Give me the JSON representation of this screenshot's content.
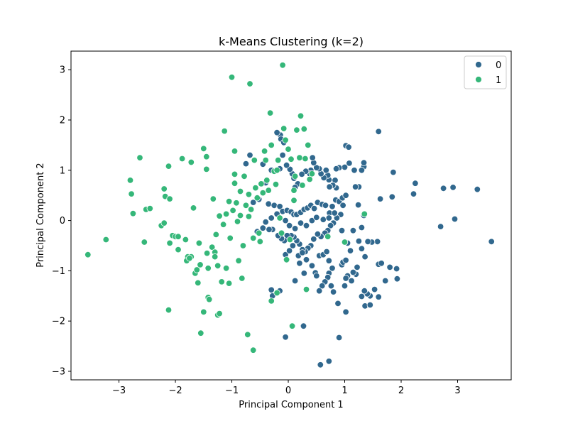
{
  "chart_data": {
    "type": "scatter",
    "title": "k-Means Clustering (k=2)",
    "xlabel": "Principal Component 1",
    "ylabel": "Principal Component 2",
    "xlim": [
      -3.85,
      3.95
    ],
    "ylim": [
      -3.17,
      3.37
    ],
    "xticks": [
      -3,
      -2,
      -1,
      0,
      1,
      2,
      3
    ],
    "yticks": [
      -3,
      -2,
      -1,
      0,
      1,
      2,
      3
    ],
    "grid": false,
    "legend_position": "top-right",
    "colors": {
      "0": "#31688e",
      "1": "#35b779"
    },
    "series": [
      {
        "name": "0",
        "points": [
          [
            3.6,
            -0.42
          ],
          [
            2.95,
            0.03
          ],
          [
            2.92,
            0.66
          ],
          [
            2.75,
            0.64
          ],
          [
            3.35,
            0.62
          ],
          [
            2.7,
            -0.12
          ],
          [
            2.25,
            0.74
          ],
          [
            2.22,
            0.53
          ],
          [
            1.86,
            0.96
          ],
          [
            1.84,
            0.47
          ],
          [
            1.6,
            1.77
          ],
          [
            1.63,
            0.43
          ],
          [
            1.58,
            -0.42
          ],
          [
            1.48,
            -0.43
          ],
          [
            1.41,
            -0.42
          ],
          [
            1.6,
            -0.87
          ],
          [
            1.65,
            -0.85
          ],
          [
            1.8,
            -0.93
          ],
          [
            1.92,
            -0.96
          ],
          [
            1.93,
            -1.16
          ],
          [
            1.72,
            -1.2
          ],
          [
            1.53,
            -1.37
          ],
          [
            1.6,
            -1.52
          ],
          [
            1.45,
            -1.5
          ],
          [
            1.4,
            -1.46
          ],
          [
            1.35,
            -1.4
          ],
          [
            1.3,
            -1.51
          ],
          [
            1.36,
            -1.7
          ],
          [
            1.36,
            -0.72
          ],
          [
            1.3,
            -0.56
          ],
          [
            1.25,
            -0.41
          ],
          [
            1.22,
            -0.93
          ],
          [
            1.2,
            -1.07
          ],
          [
            1.15,
            -1.03
          ],
          [
            1.12,
            -1.2
          ],
          [
            1.05,
            -1.1
          ],
          [
            1.02,
            -1.15
          ],
          [
            0.95,
            -0.88
          ],
          [
            0.97,
            -0.83
          ],
          [
            1.02,
            -0.79
          ],
          [
            1.15,
            -0.2
          ],
          [
            1.3,
            -0.14
          ],
          [
            1.34,
            0.1
          ],
          [
            1.24,
            0.31
          ],
          [
            1.25,
            0.67
          ],
          [
            1.19,
            0.67
          ],
          [
            1.34,
            1.07
          ],
          [
            1.34,
            1.15
          ],
          [
            1.3,
            1.0
          ],
          [
            1.17,
            1.0
          ],
          [
            1.08,
            1.14
          ],
          [
            1.02,
            1.49
          ],
          [
            1.07,
            1.46
          ],
          [
            1.0,
            1.06
          ],
          [
            0.9,
            1.05
          ],
          [
            0.85,
            1.03
          ],
          [
            0.83,
            0.8
          ],
          [
            0.85,
            0.65
          ],
          [
            0.79,
            0.7
          ],
          [
            0.73,
            0.67
          ],
          [
            0.72,
            0.81
          ],
          [
            0.7,
            0.9
          ],
          [
            0.67,
            1.0
          ],
          [
            0.63,
            0.85
          ],
          [
            0.58,
            0.93
          ],
          [
            0.55,
            1.03
          ],
          [
            0.5,
            1.05
          ],
          [
            0.45,
            1.15
          ],
          [
            0.43,
            1.25
          ],
          [
            0.4,
            1.0
          ],
          [
            0.38,
            0.93
          ],
          [
            0.31,
            0.98
          ],
          [
            0.24,
            0.92
          ],
          [
            0.17,
            0.73
          ],
          [
            0.12,
            0.66
          ],
          [
            0.1,
            0.84
          ],
          [
            0.07,
            0.93
          ],
          [
            0.03,
            1.02
          ],
          [
            -0.03,
            1.1
          ],
          [
            -0.1,
            1.3
          ],
          [
            -0.14,
            1.7
          ],
          [
            -0.2,
            1.75
          ],
          [
            -0.13,
            1.62
          ],
          [
            -0.08,
            1.55
          ],
          [
            -0.15,
            1.03
          ],
          [
            -0.3,
            1.0
          ],
          [
            -0.4,
            0.75
          ],
          [
            -0.45,
            1.12
          ],
          [
            -0.68,
            1.3
          ],
          [
            -0.75,
            1.13
          ],
          [
            -0.52,
            0.42
          ],
          [
            -0.62,
            0.36
          ],
          [
            -0.35,
            0.33
          ],
          [
            -0.25,
            0.3
          ],
          [
            -0.15,
            0.28
          ],
          [
            -0.1,
            0.18
          ],
          [
            -0.02,
            0.2
          ],
          [
            0.05,
            0.17
          ],
          [
            0.1,
            0.12
          ],
          [
            0.15,
            0.12
          ],
          [
            0.22,
            0.16
          ],
          [
            0.28,
            0.22
          ],
          [
            0.34,
            0.25
          ],
          [
            0.4,
            0.3
          ],
          [
            0.46,
            0.24
          ],
          [
            0.52,
            0.36
          ],
          [
            0.6,
            0.32
          ],
          [
            0.66,
            0.3
          ],
          [
            0.73,
            0.15
          ],
          [
            0.78,
            0.28
          ],
          [
            0.84,
            0.41
          ],
          [
            0.9,
            0.38
          ],
          [
            0.96,
            0.45
          ],
          [
            1.02,
            0.5
          ],
          [
            0.97,
            0.3
          ],
          [
            0.93,
            0.12
          ],
          [
            0.86,
            0.05
          ],
          [
            0.8,
            -0.05
          ],
          [
            0.75,
            -0.1
          ],
          [
            0.7,
            -0.2
          ],
          [
            0.65,
            -0.25
          ],
          [
            0.58,
            -0.32
          ],
          [
            0.52,
            -0.27
          ],
          [
            0.45,
            -0.37
          ],
          [
            0.4,
            -0.5
          ],
          [
            0.35,
            -0.55
          ],
          [
            0.3,
            -0.62
          ],
          [
            0.25,
            -0.58
          ],
          [
            0.2,
            -0.47
          ],
          [
            0.15,
            -0.4
          ],
          [
            0.1,
            -0.33
          ],
          [
            0.05,
            -0.3
          ],
          [
            -0.02,
            -0.3
          ],
          [
            -0.07,
            -0.4
          ],
          [
            -0.12,
            -0.36
          ],
          [
            -0.18,
            -0.3
          ],
          [
            -0.28,
            -0.18
          ],
          [
            -0.34,
            -0.18
          ],
          [
            -0.45,
            -0.15
          ],
          [
            -0.55,
            -0.22
          ],
          [
            -0.4,
            -0.03
          ],
          [
            -0.3,
            0.05
          ],
          [
            -0.2,
            0.13
          ],
          [
            -0.05,
            0.0
          ],
          [
            0.02,
            -0.1
          ],
          [
            0.12,
            -0.16
          ],
          [
            0.22,
            -0.05
          ],
          [
            0.32,
            -0.1
          ],
          [
            0.42,
            0.0
          ],
          [
            0.5,
            0.06
          ],
          [
            0.62,
            0.02
          ],
          [
            0.72,
            0.05
          ],
          [
            0.82,
            0.15
          ],
          [
            -0.05,
            -0.68
          ],
          [
            0.02,
            -0.6
          ],
          [
            0.08,
            -0.5
          ],
          [
            0.18,
            -0.7
          ],
          [
            0.25,
            -0.64
          ],
          [
            0.32,
            -0.78
          ],
          [
            0.42,
            -0.9
          ],
          [
            0.48,
            -1.04
          ],
          [
            0.55,
            -0.7
          ],
          [
            0.62,
            -0.68
          ],
          [
            0.68,
            -0.62
          ],
          [
            0.72,
            -0.8
          ],
          [
            0.78,
            -0.95
          ],
          [
            0.72,
            -1.05
          ],
          [
            0.7,
            -1.13
          ],
          [
            0.76,
            -1.3
          ],
          [
            0.8,
            -1.42
          ],
          [
            0.88,
            -1.65
          ],
          [
            0.65,
            -1.22
          ],
          [
            0.6,
            -1.3
          ],
          [
            0.55,
            -1.4
          ],
          [
            0.5,
            -1.1
          ],
          [
            0.2,
            -0.85
          ],
          [
            0.28,
            -1.05
          ],
          [
            0.12,
            -1.2
          ],
          [
            0.9,
            -2.33
          ],
          [
            0.72,
            -2.8
          ],
          [
            0.57,
            -2.87
          ],
          [
            0.27,
            -2.1
          ],
          [
            -0.05,
            -2.32
          ],
          [
            -0.3,
            -1.38
          ],
          [
            -0.15,
            -1.4
          ],
          [
            -0.28,
            -1.5
          ],
          [
            1.0,
            -1.3
          ],
          [
            1.02,
            -1.82
          ],
          [
            1.1,
            -0.6
          ],
          [
            1.05,
            -0.45
          ],
          [
            0.95,
            -0.2
          ],
          [
            1.45,
            -1.68
          ]
        ]
      },
      {
        "name": "1",
        "points": [
          [
            -3.55,
            -0.68
          ],
          [
            -3.23,
            -0.38
          ],
          [
            -2.8,
            0.8
          ],
          [
            -2.78,
            0.53
          ],
          [
            -2.75,
            0.14
          ],
          [
            -2.63,
            1.25
          ],
          [
            -2.55,
            -0.43
          ],
          [
            -2.52,
            0.22
          ],
          [
            -2.45,
            0.24
          ],
          [
            -2.25,
            -0.1
          ],
          [
            -2.2,
            -0.05
          ],
          [
            -2.2,
            0.63
          ],
          [
            -2.18,
            0.48
          ],
          [
            -2.12,
            1.08
          ],
          [
            -2.1,
            0.43
          ],
          [
            -2.1,
            -0.45
          ],
          [
            -2.05,
            -0.3
          ],
          [
            -2.0,
            -0.32
          ],
          [
            -1.95,
            -0.58
          ],
          [
            -1.88,
            1.23
          ],
          [
            -1.82,
            -0.38
          ],
          [
            -1.78,
            -0.72
          ],
          [
            -1.8,
            -0.8
          ],
          [
            -1.72,
            -0.72
          ],
          [
            -1.72,
            1.16
          ],
          [
            -1.68,
            0.25
          ],
          [
            -1.65,
            -1.05
          ],
          [
            -1.62,
            -0.98
          ],
          [
            -1.6,
            -1.24
          ],
          [
            -1.58,
            -0.45
          ],
          [
            -1.56,
            -0.88
          ],
          [
            -1.55,
            -2.24
          ],
          [
            -1.5,
            1.43
          ],
          [
            -1.45,
            1.27
          ],
          [
            -1.45,
            1.02
          ],
          [
            -1.44,
            -0.65
          ],
          [
            -1.42,
            -0.95
          ],
          [
            -1.42,
            -1.53
          ],
          [
            -1.4,
            -1.57
          ],
          [
            -1.35,
            -0.53
          ],
          [
            -1.33,
            0.43
          ],
          [
            -1.3,
            -0.63
          ],
          [
            -1.28,
            -0.28
          ],
          [
            -1.25,
            -0.9
          ],
          [
            -1.22,
            0.09
          ],
          [
            -1.18,
            -1.22
          ],
          [
            -1.15,
            -0.08
          ],
          [
            -1.13,
            1.78
          ],
          [
            -1.1,
            -0.95
          ],
          [
            -1.1,
            0.13
          ],
          [
            -1.05,
            -1.25
          ],
          [
            -1.03,
            -0.35
          ],
          [
            -1.0,
            2.85
          ],
          [
            -0.98,
            0.2
          ],
          [
            -0.95,
            0.92
          ],
          [
            -0.95,
            1.38
          ],
          [
            -0.95,
            0.74
          ],
          [
            -0.92,
            0.35
          ],
          [
            -0.9,
            -0.02
          ],
          [
            -0.88,
            -0.8
          ],
          [
            -0.85,
            0.58
          ],
          [
            -0.82,
            -1.15
          ],
          [
            -0.8,
            -0.5
          ],
          [
            -0.78,
            0.88
          ],
          [
            -0.75,
            0.3
          ],
          [
            -0.72,
            -2.27
          ],
          [
            -0.7,
            0.52
          ],
          [
            -0.68,
            2.72
          ],
          [
            -0.66,
            0.22
          ],
          [
            -0.62,
            -2.58
          ],
          [
            -0.6,
            1.2
          ],
          [
            -0.58,
            0.65
          ],
          [
            -0.55,
            0.45
          ],
          [
            -0.52,
            -0.25
          ],
          [
            -0.5,
            -0.42
          ],
          [
            -0.48,
            0.73
          ],
          [
            -0.45,
            0.55
          ],
          [
            -0.42,
            1.38
          ],
          [
            -0.38,
            0.8
          ],
          [
            -0.35,
            0.6
          ],
          [
            -0.32,
            2.14
          ],
          [
            -0.3,
            1.5
          ],
          [
            -0.3,
            -1.6
          ],
          [
            -0.25,
            0.98
          ],
          [
            -0.22,
            0.72
          ],
          [
            -0.2,
            -1.44
          ],
          [
            -0.18,
            1.2
          ],
          [
            -0.15,
            0.05
          ],
          [
            -0.12,
            -0.25
          ],
          [
            -0.1,
            3.09
          ],
          [
            -0.08,
            1.83
          ],
          [
            -0.05,
            1.6
          ],
          [
            -0.03,
            -0.78
          ],
          [
            0.0,
            1.42
          ],
          [
            0.03,
            -0.38
          ],
          [
            0.05,
            1.22
          ],
          [
            0.07,
            -2.1
          ],
          [
            0.1,
            0.6
          ],
          [
            0.12,
            0.88
          ],
          [
            0.15,
            1.8
          ],
          [
            0.2,
            1.25
          ],
          [
            0.22,
            2.08
          ],
          [
            0.25,
            0.7
          ],
          [
            0.28,
            1.82
          ],
          [
            0.3,
            1.23
          ],
          [
            0.32,
            -1.37
          ],
          [
            0.35,
            1.5
          ],
          [
            0.38,
            0.82
          ],
          [
            0.42,
            0.93
          ],
          [
            0.7,
            -0.32
          ],
          [
            1.0,
            -0.43
          ],
          [
            1.35,
            0.13
          ],
          [
            -1.3,
            -0.72
          ],
          [
            -1.5,
            -1.82
          ],
          [
            -1.25,
            -1.88
          ],
          [
            -1.22,
            -1.85
          ],
          [
            -1.95,
            -0.32
          ],
          [
            -2.12,
            -1.78
          ],
          [
            -1.75,
            -0.75
          ],
          [
            -1.05,
            0.38
          ],
          [
            -0.62,
            -0.35
          ],
          [
            -0.7,
            0.08
          ],
          [
            -0.85,
            0.1
          ],
          [
            -0.4,
            1.2
          ],
          [
            -0.2,
            1.0
          ],
          [
            0.1,
            0.4
          ]
        ]
      }
    ]
  }
}
